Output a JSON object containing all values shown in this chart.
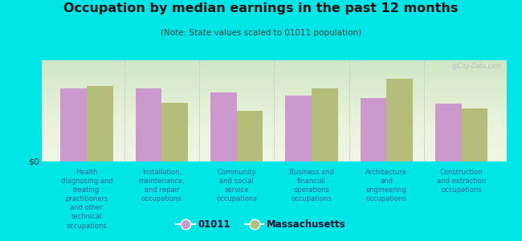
{
  "title": "Occupation by median earnings in the past 12 months",
  "subtitle": "(Note: State values scaled to 01011 population)",
  "categories": [
    "Health\ndiagnosing and\ntreating\npractitioners\nand other\ntechnical\noccupations",
    "Installation,\nmaintenance,\nand repair\noccupations",
    "Community\nand social\nservice\noccupations",
    "Business and\nfinancial\noperations\noccupations",
    "Architecture\nand\nengineering\noccupations",
    "Construction\nand extraction\noccupations"
  ],
  "values_01011": [
    0.72,
    0.72,
    0.68,
    0.65,
    0.63,
    0.57
  ],
  "values_mass": [
    0.75,
    0.58,
    0.5,
    0.72,
    0.82,
    0.52
  ],
  "color_01011": "#cc99cc",
  "color_mass": "#b5bd7a",
  "background_outer": "#00e5e5",
  "background_chart_top": "#f0f5e0",
  "background_chart_bottom": "#e0edd0",
  "ytick_label": "$0",
  "legend_01011": "01011",
  "legend_mass": "Massachusetts",
  "watermark": "@City-Data.com",
  "ylim": [
    0,
    1.0
  ],
  "bar_width": 0.35,
  "label_color": "#336699",
  "title_color": "#111111",
  "subtitle_color": "#444444"
}
